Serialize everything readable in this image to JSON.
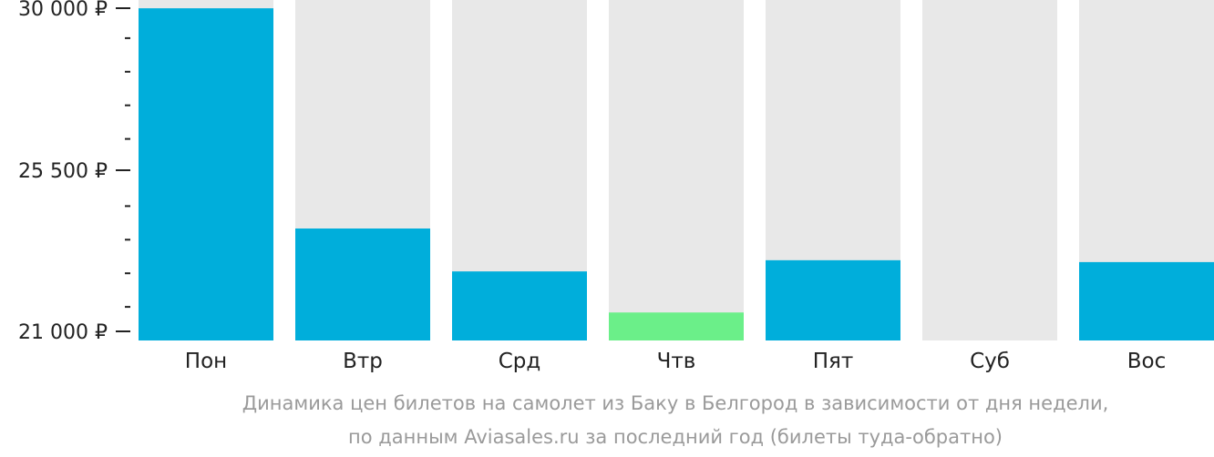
{
  "chart_data": {
    "type": "bar",
    "categories": [
      "Пон",
      "Втр",
      "Срд",
      "Чтв",
      "Пят",
      "Суб",
      "Вос"
    ],
    "values": [
      29900,
      24000,
      22850,
      21750,
      23150,
      null,
      23100
    ],
    "highlight": [
      false,
      false,
      false,
      true,
      false,
      false,
      false
    ],
    "ylim": [
      21000,
      30000
    ],
    "yticks": [
      {
        "value": 30000,
        "label": "30 000 ₽"
      },
      {
        "value": 25500,
        "label": "25 500 ₽"
      },
      {
        "value": 21000,
        "label": "21 000 ₽"
      }
    ],
    "minor_tick_step": 900,
    "colors": {
      "bar": "#00AEDB",
      "highlight": "#6BEF89",
      "background": "#E8E8E8",
      "axis": "#222222"
    },
    "caption": [
      "Динамика цен билетов на самолет из Баку в Белгород в зависимости от дня недели,",
      "по данным Aviasales.ru за последний год (билеты туда-обратно)"
    ]
  }
}
